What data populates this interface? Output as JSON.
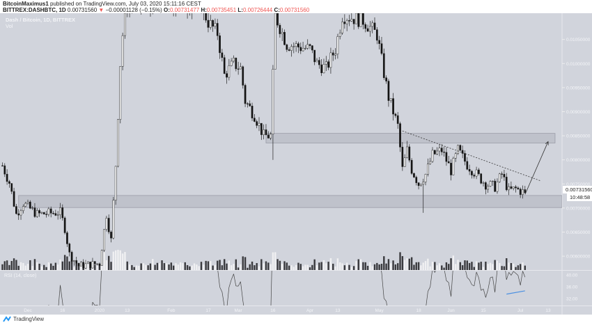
{
  "header": {
    "author": "BitcoinMaximus1",
    "published_text": "published on TradingView.com, July 03, 2020 15:11:16 CEST",
    "symbol": "BITTREX:DASHBTC, 1D",
    "last": "0.00731560",
    "change": "−0.00001128 (−0.15%)",
    "o_label": "O:",
    "o": "0.00731477",
    "h_label": "H:",
    "h": "0.00735451",
    "l_label": "L:",
    "l": "0.00726444",
    "c_label": "C:",
    "c": "0.00731560",
    "down_color": "#ef5350"
  },
  "footer": {
    "brand": "TradingView"
  },
  "chart_data": {
    "type": "candlestick",
    "title": "Dash / Bitcoin, 1D, BITTREX",
    "volume_label": "Vol",
    "indicator_label": "RSI (14, close)",
    "background": "#d1d4dc",
    "price_axis": {
      "ticks": [
        "0.01050000",
        "0.01000000",
        "0.00950000",
        "0.00900000",
        "0.00850000",
        "0.00800000",
        "0.00750000",
        "0.00700000",
        "0.00650000",
        "0.00600000"
      ],
      "tick_values": [
        0.0105,
        0.01,
        0.0095,
        0.009,
        0.0085,
        0.008,
        0.0075,
        0.007,
        0.0065,
        0.006
      ],
      "current_price": "0.00731560",
      "countdown": "10:48:58"
    },
    "rsi_axis": {
      "ticks": [
        "40.00",
        "36.00",
        "32.00"
      ],
      "tick_values": [
        40,
        36,
        32
      ]
    },
    "time_axis": [
      {
        "label": "Dec",
        "date": "2019-12-01"
      },
      {
        "label": "16",
        "date": "2019-12-16"
      },
      {
        "label": "2020",
        "date": "2020-01-01"
      },
      {
        "label": "13",
        "date": "2020-01-13"
      },
      {
        "label": "Feb",
        "date": "2020-02-01"
      },
      {
        "label": "17",
        "date": "2020-02-17"
      },
      {
        "label": "Mar",
        "date": "2020-03-01"
      },
      {
        "label": "16",
        "date": "2020-03-16"
      },
      {
        "label": "Apr",
        "date": "2020-04-01"
      },
      {
        "label": "13",
        "date": "2020-04-13"
      },
      {
        "label": "May",
        "date": "2020-05-01"
      },
      {
        "label": "18",
        "date": "2020-05-18"
      },
      {
        "label": "Jun",
        "date": "2020-06-01"
      },
      {
        "label": "15",
        "date": "2020-06-15"
      },
      {
        "label": "Jul",
        "date": "2020-07-01"
      },
      {
        "label": "13",
        "date": "2020-07-13"
      }
    ],
    "approx_closes": [
      [
        "2019-11-20",
        0.00788
      ],
      [
        "2019-11-23",
        0.00753
      ],
      [
        "2019-11-26",
        0.00687
      ],
      [
        "2019-11-29",
        0.0071
      ],
      [
        "2019-12-05",
        0.00687
      ],
      [
        "2019-12-15",
        0.00691
      ],
      [
        "2019-12-17",
        0.00658
      ],
      [
        "2019-12-19",
        0.00604
      ],
      [
        "2019-12-23",
        0.0058
      ],
      [
        "2020-01-01",
        0.00585
      ],
      [
        "2020-01-04",
        0.00687
      ],
      [
        "2020-01-06",
        0.00633
      ],
      [
        "2020-01-08",
        0.0079
      ],
      [
        "2020-01-10",
        0.01
      ],
      [
        "2020-01-12",
        0.0112
      ],
      [
        "2020-02-14",
        0.0112
      ],
      [
        "2020-02-17",
        0.01086
      ],
      [
        "2020-02-21",
        0.01063
      ],
      [
        "2020-02-24",
        0.00976
      ],
      [
        "2020-02-28",
        0.01
      ],
      [
        "2020-03-02",
        0.0099
      ],
      [
        "2020-03-04",
        0.00922
      ],
      [
        "2020-03-08",
        0.00893
      ],
      [
        "2020-03-12",
        0.0085
      ],
      [
        "2020-03-15",
        0.0085
      ],
      [
        "2020-03-17",
        0.011
      ],
      [
        "2020-03-22",
        0.0104
      ],
      [
        "2020-04-01",
        0.0103
      ],
      [
        "2020-04-04",
        0.01
      ],
      [
        "2020-04-08",
        0.0099
      ],
      [
        "2020-04-12",
        0.0103
      ],
      [
        "2020-04-15",
        0.011
      ],
      [
        "2020-04-24",
        0.0109
      ],
      [
        "2020-04-30",
        0.0106
      ],
      [
        "2020-05-03",
        0.0098
      ],
      [
        "2020-05-05",
        0.0093
      ],
      [
        "2020-05-07",
        0.009
      ],
      [
        "2020-05-09",
        0.0087
      ],
      [
        "2020-05-11",
        0.0078
      ],
      [
        "2020-05-13",
        0.0082
      ],
      [
        "2020-05-15",
        0.0078
      ],
      [
        "2020-05-18",
        0.0075
      ],
      [
        "2020-05-21",
        0.0077
      ],
      [
        "2020-05-24",
        0.0081
      ],
      [
        "2020-05-28",
        0.0082
      ],
      [
        "2020-06-01",
        0.00778
      ],
      [
        "2020-06-04",
        0.0082
      ],
      [
        "2020-06-08",
        0.0079
      ],
      [
        "2020-06-12",
        0.0077
      ],
      [
        "2020-06-16",
        0.0075
      ],
      [
        "2020-06-20",
        0.00744
      ],
      [
        "2020-06-23",
        0.0077
      ],
      [
        "2020-06-26",
        0.00735
      ],
      [
        "2020-06-29",
        0.0074
      ],
      [
        "2020-07-03",
        0.0073156
      ]
    ],
    "notable_wicks": [
      [
        "2020-05-20",
        0.0069
      ],
      [
        "2020-03-16",
        0.008
      ]
    ],
    "drawings": {
      "resistance_zone": {
        "from": "2020-03-13",
        "to": "2020-07-16",
        "high": 0.00855,
        "low": 0.00835
      },
      "support_zone": {
        "from": "2019-11-27",
        "to": "2020-07-30",
        "high": 0.00726,
        "low": 0.00701
      },
      "trendline": {
        "from": [
          "2020-05-11",
          0.0086
        ],
        "to": [
          "2020-07-10",
          0.00756
        ]
      },
      "arrow": {
        "from": [
          "2020-07-03",
          0.00728
        ],
        "to": [
          "2020-07-13",
          0.00838
        ]
      },
      "rsi_divergence_line": {
        "from": [
          "2020-06-25",
          33.5
        ],
        "to": [
          "2020-07-03",
          34.6
        ],
        "color": "#4a90e2"
      }
    }
  }
}
